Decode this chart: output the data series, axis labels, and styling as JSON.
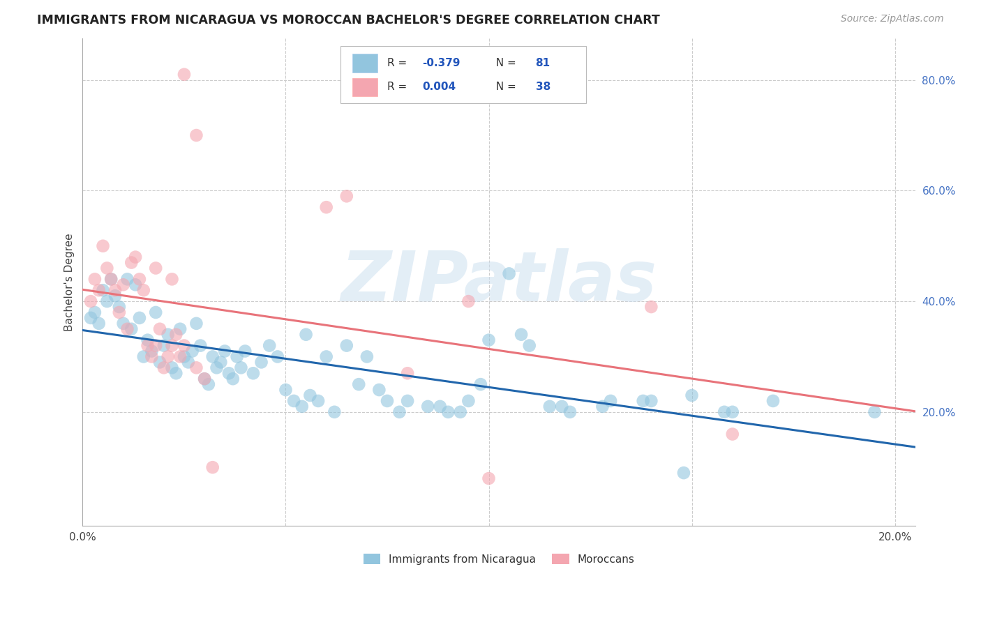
{
  "title": "IMMIGRANTS FROM NICARAGUA VS MOROCCAN BACHELOR'S DEGREE CORRELATION CHART",
  "source": "Source: ZipAtlas.com",
  "ylabel": "Bachelor's Degree",
  "legend_label_blue": "Immigrants from Nicaragua",
  "legend_label_pink": "Moroccans",
  "r_nicaragua": -0.379,
  "n_nicaragua": 81,
  "r_morocco": 0.004,
  "n_morocco": 38,
  "xlim": [
    0.0,
    0.205
  ],
  "ylim": [
    -0.005,
    0.875
  ],
  "blue_color": "#92c5de",
  "pink_color": "#f4a6b0",
  "blue_line_color": "#2166ac",
  "pink_line_color": "#e8737a",
  "bg_color": "#ffffff",
  "grid_color": "#cccccc",
  "watermark_text": "ZIPatlas",
  "watermark_color": "#cde0f0",
  "title_fontsize": 12.5,
  "source_fontsize": 10,
  "tick_fontsize": 11,
  "ylabel_fontsize": 11,
  "blue_x": [
    0.002,
    0.003,
    0.004,
    0.005,
    0.006,
    0.007,
    0.008,
    0.009,
    0.01,
    0.011,
    0.012,
    0.013,
    0.014,
    0.015,
    0.016,
    0.017,
    0.018,
    0.019,
    0.02,
    0.021,
    0.022,
    0.023,
    0.024,
    0.025,
    0.026,
    0.027,
    0.028,
    0.029,
    0.03,
    0.031,
    0.032,
    0.033,
    0.034,
    0.035,
    0.036,
    0.037,
    0.038,
    0.039,
    0.04,
    0.042,
    0.044,
    0.046,
    0.048,
    0.05,
    0.052,
    0.054,
    0.056,
    0.058,
    0.06,
    0.065,
    0.07,
    0.075,
    0.08,
    0.085,
    0.09,
    0.095,
    0.1,
    0.105,
    0.11,
    0.115,
    0.12,
    0.13,
    0.14,
    0.15,
    0.16,
    0.17,
    0.055,
    0.062,
    0.068,
    0.073,
    0.078,
    0.088,
    0.093,
    0.098,
    0.108,
    0.118,
    0.128,
    0.138,
    0.148,
    0.158,
    0.195
  ],
  "blue_y": [
    0.37,
    0.38,
    0.36,
    0.42,
    0.4,
    0.44,
    0.41,
    0.39,
    0.36,
    0.44,
    0.35,
    0.43,
    0.37,
    0.3,
    0.33,
    0.31,
    0.38,
    0.29,
    0.32,
    0.34,
    0.28,
    0.27,
    0.35,
    0.3,
    0.29,
    0.31,
    0.36,
    0.32,
    0.26,
    0.25,
    0.3,
    0.28,
    0.29,
    0.31,
    0.27,
    0.26,
    0.3,
    0.28,
    0.31,
    0.27,
    0.29,
    0.32,
    0.3,
    0.24,
    0.22,
    0.21,
    0.23,
    0.22,
    0.3,
    0.32,
    0.3,
    0.22,
    0.22,
    0.21,
    0.2,
    0.22,
    0.33,
    0.45,
    0.32,
    0.21,
    0.2,
    0.22,
    0.22,
    0.23,
    0.2,
    0.22,
    0.34,
    0.2,
    0.25,
    0.24,
    0.2,
    0.21,
    0.2,
    0.25,
    0.34,
    0.21,
    0.21,
    0.22,
    0.09,
    0.2,
    0.2
  ],
  "pink_x": [
    0.002,
    0.003,
    0.004,
    0.005,
    0.006,
    0.007,
    0.008,
    0.009,
    0.01,
    0.011,
    0.012,
    0.013,
    0.014,
    0.015,
    0.016,
    0.017,
    0.018,
    0.019,
    0.02,
    0.021,
    0.022,
    0.023,
    0.024,
    0.025,
    0.028,
    0.03,
    0.032,
    0.018,
    0.022,
    0.06,
    0.08,
    0.095,
    0.1,
    0.14,
    0.16,
    0.065,
    0.028,
    0.025
  ],
  "pink_y": [
    0.4,
    0.44,
    0.42,
    0.5,
    0.46,
    0.44,
    0.42,
    0.38,
    0.43,
    0.35,
    0.47,
    0.48,
    0.44,
    0.42,
    0.32,
    0.3,
    0.32,
    0.35,
    0.28,
    0.3,
    0.32,
    0.34,
    0.3,
    0.32,
    0.28,
    0.26,
    0.1,
    0.46,
    0.44,
    0.57,
    0.27,
    0.4,
    0.08,
    0.39,
    0.16,
    0.59,
    0.7,
    0.81
  ]
}
